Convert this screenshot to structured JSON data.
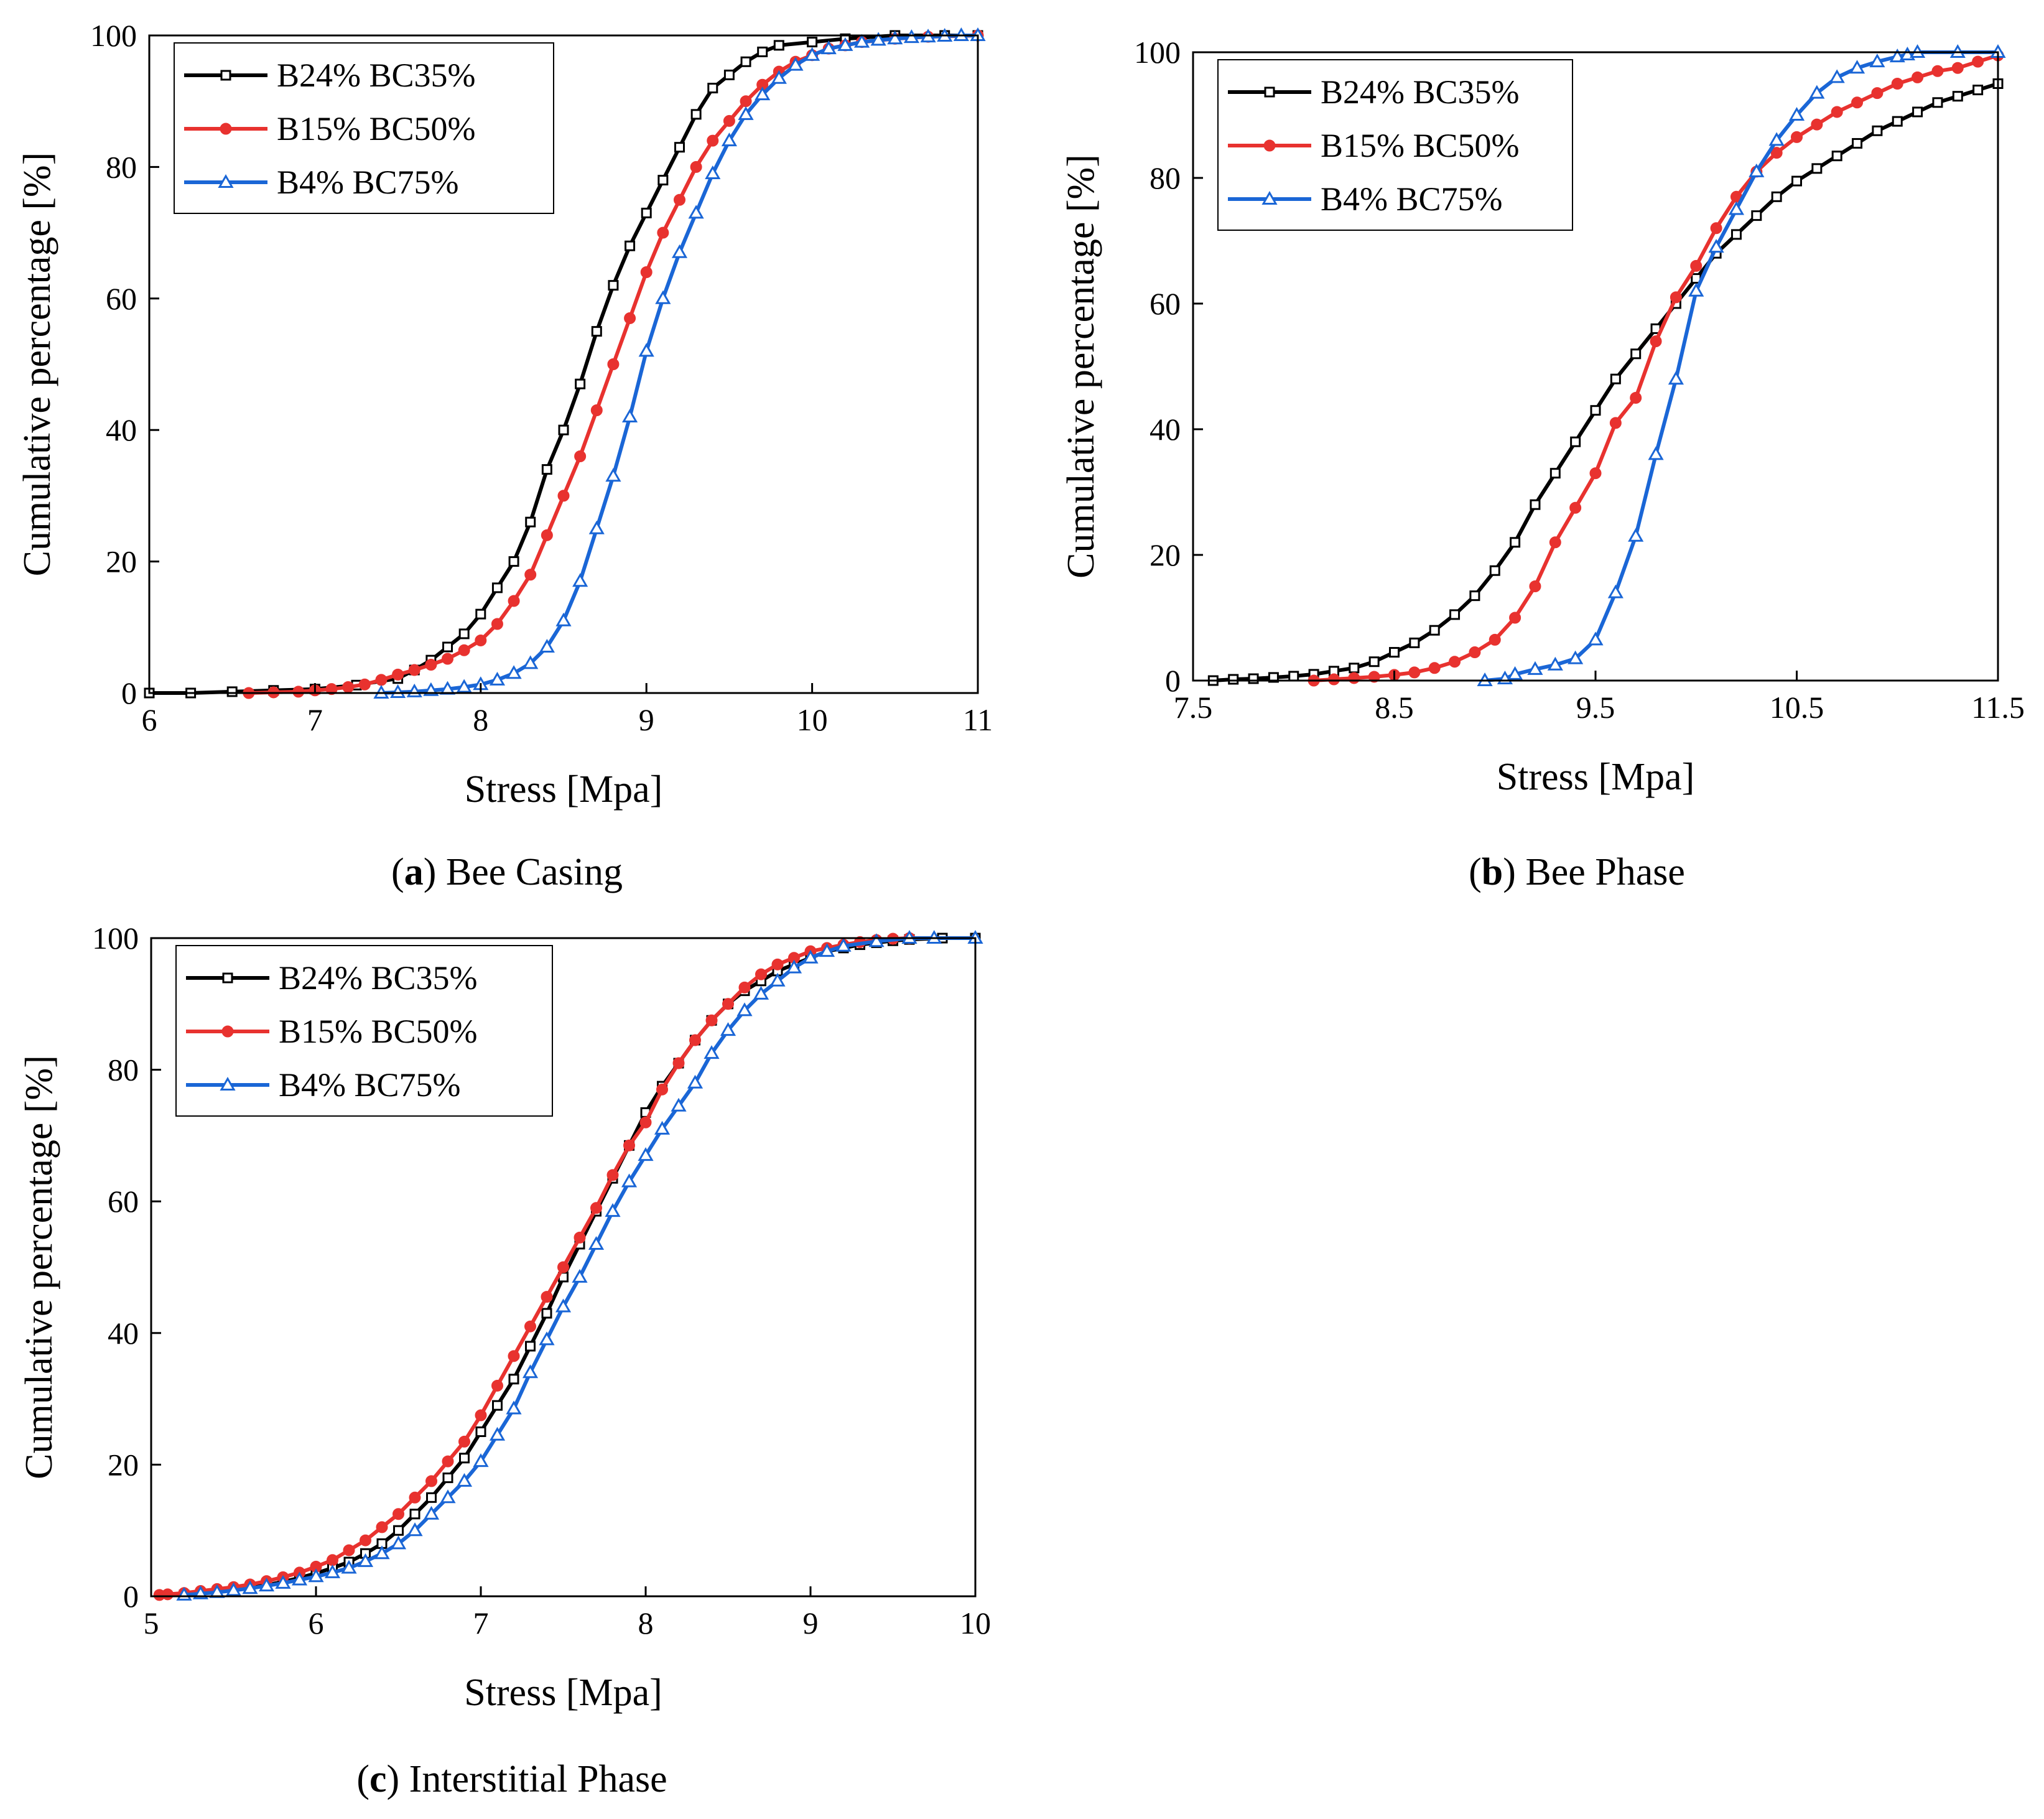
{
  "chart_data": [
    {
      "type": "line",
      "panel_letter": "a",
      "caption": "Bee Casing",
      "xlabel": "Stress [Mpa]",
      "ylabel": "Cumulative percentage [%]",
      "xlim": [
        6,
        11
      ],
      "ylim": [
        0,
        100
      ],
      "xticks": [
        "6",
        "7",
        "8",
        "9",
        "10",
        "11"
      ],
      "yticks": [
        "0",
        "20",
        "40",
        "60",
        "80",
        "100"
      ],
      "legend_position": "top-left",
      "grid": false,
      "series": [
        {
          "name": "B24% BC35%",
          "color": "#000000",
          "marker": "open-square",
          "x": [
            6.0,
            6.25,
            6.5,
            6.75,
            7.0,
            7.25,
            7.5,
            7.6,
            7.7,
            7.8,
            7.9,
            8.0,
            8.1,
            8.2,
            8.3,
            8.4,
            8.5,
            8.6,
            8.7,
            8.8,
            8.9,
            9.0,
            9.1,
            9.2,
            9.3,
            9.4,
            9.5,
            9.6,
            9.7,
            9.8,
            10.0,
            10.2,
            10.5,
            10.8,
            11.0
          ],
          "y": [
            0,
            0,
            0.2,
            0.4,
            0.6,
            1.2,
            2.2,
            3.5,
            5,
            7,
            9,
            12,
            16,
            20,
            26,
            34,
            40,
            47,
            55,
            62,
            68,
            73,
            78,
            83,
            88,
            92,
            94,
            96,
            97.5,
            98.5,
            99,
            99.5,
            100,
            100,
            100
          ]
        },
        {
          "name": "B15% BC50%",
          "color": "#e8322f",
          "marker": "filled-circle",
          "x": [
            6.6,
            6.75,
            6.9,
            7.0,
            7.1,
            7.2,
            7.3,
            7.4,
            7.5,
            7.6,
            7.7,
            7.8,
            7.9,
            8.0,
            8.1,
            8.2,
            8.3,
            8.4,
            8.5,
            8.6,
            8.7,
            8.8,
            8.9,
            9.0,
            9.1,
            9.2,
            9.3,
            9.4,
            9.5,
            9.6,
            9.7,
            9.8,
            9.9,
            10.0,
            10.1,
            10.2,
            10.3,
            10.5,
            10.7,
            11.0
          ],
          "y": [
            0,
            0.1,
            0.2,
            0.4,
            0.6,
            0.9,
            1.3,
            2,
            2.8,
            3.5,
            4.3,
            5.2,
            6.5,
            8,
            10.5,
            14,
            18,
            24,
            30,
            36,
            43,
            50,
            57,
            64,
            70,
            75,
            80,
            84,
            87,
            90,
            92.5,
            94.5,
            96,
            97,
            98,
            98.5,
            99,
            99.5,
            99.8,
            100
          ]
        },
        {
          "name": "B4% BC75%",
          "color": "#1a66d6",
          "marker": "open-triangle",
          "x": [
            7.4,
            7.5,
            7.6,
            7.7,
            7.8,
            7.9,
            8.0,
            8.1,
            8.2,
            8.3,
            8.4,
            8.5,
            8.6,
            8.7,
            8.8,
            8.9,
            9.0,
            9.1,
            9.2,
            9.3,
            9.4,
            9.5,
            9.6,
            9.7,
            9.8,
            9.9,
            10.0,
            10.1,
            10.2,
            10.3,
            10.4,
            10.5,
            10.6,
            10.7,
            10.8,
            10.9,
            11.0
          ],
          "y": [
            0,
            0.1,
            0.2,
            0.4,
            0.6,
            0.9,
            1.3,
            2,
            3,
            4.5,
            7,
            11,
            17,
            25,
            33,
            42,
            52,
            60,
            67,
            73,
            79,
            84,
            88,
            91,
            93.5,
            95.5,
            97,
            98,
            98.5,
            99,
            99.3,
            99.5,
            99.7,
            99.8,
            99.9,
            100,
            100
          ]
        }
      ]
    },
    {
      "type": "line",
      "panel_letter": "b",
      "caption": "Bee Phase",
      "xlabel": "Stress [Mpa]",
      "ylabel": "Cumulative percentage [%]",
      "xlim": [
        7.5,
        11.5
      ],
      "ylim": [
        0,
        100
      ],
      "xticks": [
        "7.5",
        "8.5",
        "9.5",
        "10.5",
        "11.5"
      ],
      "yticks": [
        "0",
        "20",
        "40",
        "60",
        "80",
        "100"
      ],
      "legend_position": "top-left",
      "grid": false,
      "series": [
        {
          "name": "B24% BC35%",
          "color": "#000000",
          "marker": "open-square",
          "x": [
            7.6,
            7.7,
            7.8,
            7.9,
            8.0,
            8.1,
            8.2,
            8.3,
            8.4,
            8.5,
            8.6,
            8.7,
            8.8,
            8.9,
            9.0,
            9.1,
            9.2,
            9.3,
            9.4,
            9.5,
            9.6,
            9.7,
            9.8,
            9.9,
            10.0,
            10.1,
            10.2,
            10.3,
            10.4,
            10.5,
            10.6,
            10.7,
            10.8,
            10.9,
            11.0,
            11.1,
            11.2,
            11.3,
            11.4,
            11.5
          ],
          "y": [
            0,
            0.2,
            0.3,
            0.5,
            0.7,
            1,
            1.5,
            2,
            3,
            4.5,
            6,
            8,
            10.5,
            13.5,
            17.5,
            22,
            28,
            33,
            38,
            43,
            48,
            52,
            56,
            60,
            64,
            68,
            71,
            74,
            77,
            79.5,
            81.5,
            83.5,
            85.5,
            87.5,
            89,
            90.5,
            92,
            93,
            94,
            95
          ]
        },
        {
          "name": "B15% BC50%",
          "color": "#e8322f",
          "marker": "filled-circle",
          "x": [
            8.1,
            8.2,
            8.3,
            8.4,
            8.5,
            8.6,
            8.7,
            8.8,
            8.9,
            9.0,
            9.1,
            9.2,
            9.3,
            9.4,
            9.5,
            9.6,
            9.7,
            9.8,
            9.9,
            10.0,
            10.1,
            10.2,
            10.3,
            10.4,
            10.5,
            10.6,
            10.7,
            10.8,
            10.9,
            11.0,
            11.1,
            11.2,
            11.3,
            11.4,
            11.5
          ],
          "y": [
            0,
            0.2,
            0.4,
            0.6,
            0.9,
            1.3,
            2,
            3,
            4.5,
            6.5,
            10,
            15,
            22,
            27.5,
            33,
            41,
            45,
            54,
            61,
            66,
            72,
            77,
            81,
            84,
            86.5,
            88.5,
            90.5,
            92,
            93.5,
            95,
            96,
            97,
            97.5,
            98.5,
            99.5
          ]
        },
        {
          "name": "B4% BC75%",
          "color": "#1a66d6",
          "marker": "open-triangle",
          "x": [
            8.95,
            9.05,
            9.1,
            9.2,
            9.3,
            9.4,
            9.5,
            9.6,
            9.7,
            9.8,
            9.9,
            10.0,
            10.1,
            10.2,
            10.3,
            10.4,
            10.5,
            10.6,
            10.7,
            10.8,
            10.9,
            11.0,
            11.05,
            11.1,
            11.3,
            11.5
          ],
          "y": [
            0,
            0.3,
            1,
            1.8,
            2.5,
            3.5,
            6.5,
            14,
            23,
            36,
            48,
            62,
            69,
            75,
            81,
            86,
            90,
            93.5,
            96,
            97.5,
            98.5,
            99.3,
            99.6,
            100,
            100,
            100
          ]
        }
      ]
    },
    {
      "type": "line",
      "panel_letter": "c",
      "caption": "Interstitial Phase",
      "xlabel": "Stress [Mpa]",
      "ylabel": "Cumulative percentage [%]",
      "xlim": [
        5,
        10
      ],
      "ylim": [
        0,
        100
      ],
      "xticks": [
        "5",
        "6",
        "7",
        "8",
        "9",
        "10"
      ],
      "yticks": [
        "0",
        "20",
        "40",
        "60",
        "80",
        "100"
      ],
      "legend_position": "top-left",
      "grid": false,
      "series": [
        {
          "name": "B24% BC35%",
          "color": "#000000",
          "marker": "open-square",
          "x": [
            5.2,
            5.3,
            5.4,
            5.5,
            5.6,
            5.7,
            5.8,
            5.9,
            6.0,
            6.1,
            6.2,
            6.3,
            6.4,
            6.5,
            6.6,
            6.7,
            6.8,
            6.9,
            7.0,
            7.1,
            7.2,
            7.3,
            7.4,
            7.5,
            7.6,
            7.7,
            7.8,
            7.9,
            8.0,
            8.1,
            8.2,
            8.3,
            8.4,
            8.5,
            8.6,
            8.7,
            8.8,
            8.9,
            9.0,
            9.1,
            9.2,
            9.3,
            9.4,
            9.5,
            9.6,
            9.8,
            10.0
          ],
          "y": [
            0.2,
            0.4,
            0.7,
            1,
            1.3,
            1.7,
            2.2,
            2.8,
            3.5,
            4.3,
            5.2,
            6.5,
            8,
            10,
            12.5,
            15,
            18,
            21,
            25,
            29,
            33,
            38,
            43,
            48.5,
            53.5,
            58.5,
            63.5,
            68.5,
            73.5,
            77.5,
            81,
            84.5,
            87.5,
            90,
            92,
            93.5,
            95,
            96,
            97,
            98,
            98.5,
            99,
            99.3,
            99.6,
            99.8,
            100,
            100
          ]
        },
        {
          "name": "B15% BC50%",
          "color": "#e8322f",
          "marker": "filled-circle",
          "x": [
            5.05,
            5.1,
            5.2,
            5.3,
            5.4,
            5.5,
            5.6,
            5.7,
            5.8,
            5.9,
            6.0,
            6.1,
            6.2,
            6.3,
            6.4,
            6.5,
            6.6,
            6.7,
            6.8,
            6.9,
            7.0,
            7.1,
            7.2,
            7.3,
            7.4,
            7.5,
            7.6,
            7.7,
            7.8,
            7.9,
            8.0,
            8.1,
            8.2,
            8.3,
            8.4,
            8.5,
            8.6,
            8.7,
            8.8,
            8.9,
            9.0,
            9.1,
            9.2,
            9.3,
            9.4,
            9.5,
            9.6
          ],
          "y": [
            0.2,
            0.3,
            0.5,
            0.8,
            1.1,
            1.4,
            1.8,
            2.3,
            2.9,
            3.6,
            4.5,
            5.5,
            7,
            8.5,
            10.5,
            12.5,
            15,
            17.5,
            20.5,
            23.5,
            27.5,
            32,
            36.5,
            41,
            45.5,
            50,
            54.5,
            59,
            64,
            68.5,
            72,
            77,
            81,
            84.5,
            87.5,
            90,
            92.5,
            94.5,
            96,
            97,
            98,
            98.5,
            99,
            99.4,
            99.7,
            99.9,
            100
          ]
        },
        {
          "name": "B4% BC75%",
          "color": "#1a66d6",
          "marker": "open-triangle",
          "x": [
            5.2,
            5.3,
            5.4,
            5.5,
            5.6,
            5.7,
            5.8,
            5.9,
            6.0,
            6.1,
            6.2,
            6.3,
            6.4,
            6.5,
            6.6,
            6.7,
            6.8,
            6.9,
            7.0,
            7.1,
            7.2,
            7.3,
            7.4,
            7.5,
            7.6,
            7.7,
            7.8,
            7.9,
            8.0,
            8.1,
            8.2,
            8.3,
            8.4,
            8.5,
            8.6,
            8.7,
            8.8,
            8.9,
            9.0,
            9.1,
            9.2,
            9.4,
            9.6,
            9.75,
            10.0
          ],
          "y": [
            0.2,
            0.4,
            0.6,
            0.9,
            1.2,
            1.6,
            2,
            2.5,
            3,
            3.6,
            4.3,
            5.3,
            6.5,
            8,
            10,
            12.5,
            15,
            17.5,
            20.5,
            24.5,
            28.5,
            34,
            39,
            44,
            48.5,
            53.5,
            58.5,
            63,
            67,
            71,
            74.5,
            78,
            82.5,
            86,
            89,
            91.5,
            93.5,
            95.5,
            97,
            98,
            98.8,
            99.5,
            100,
            100,
            100
          ]
        }
      ]
    }
  ]
}
